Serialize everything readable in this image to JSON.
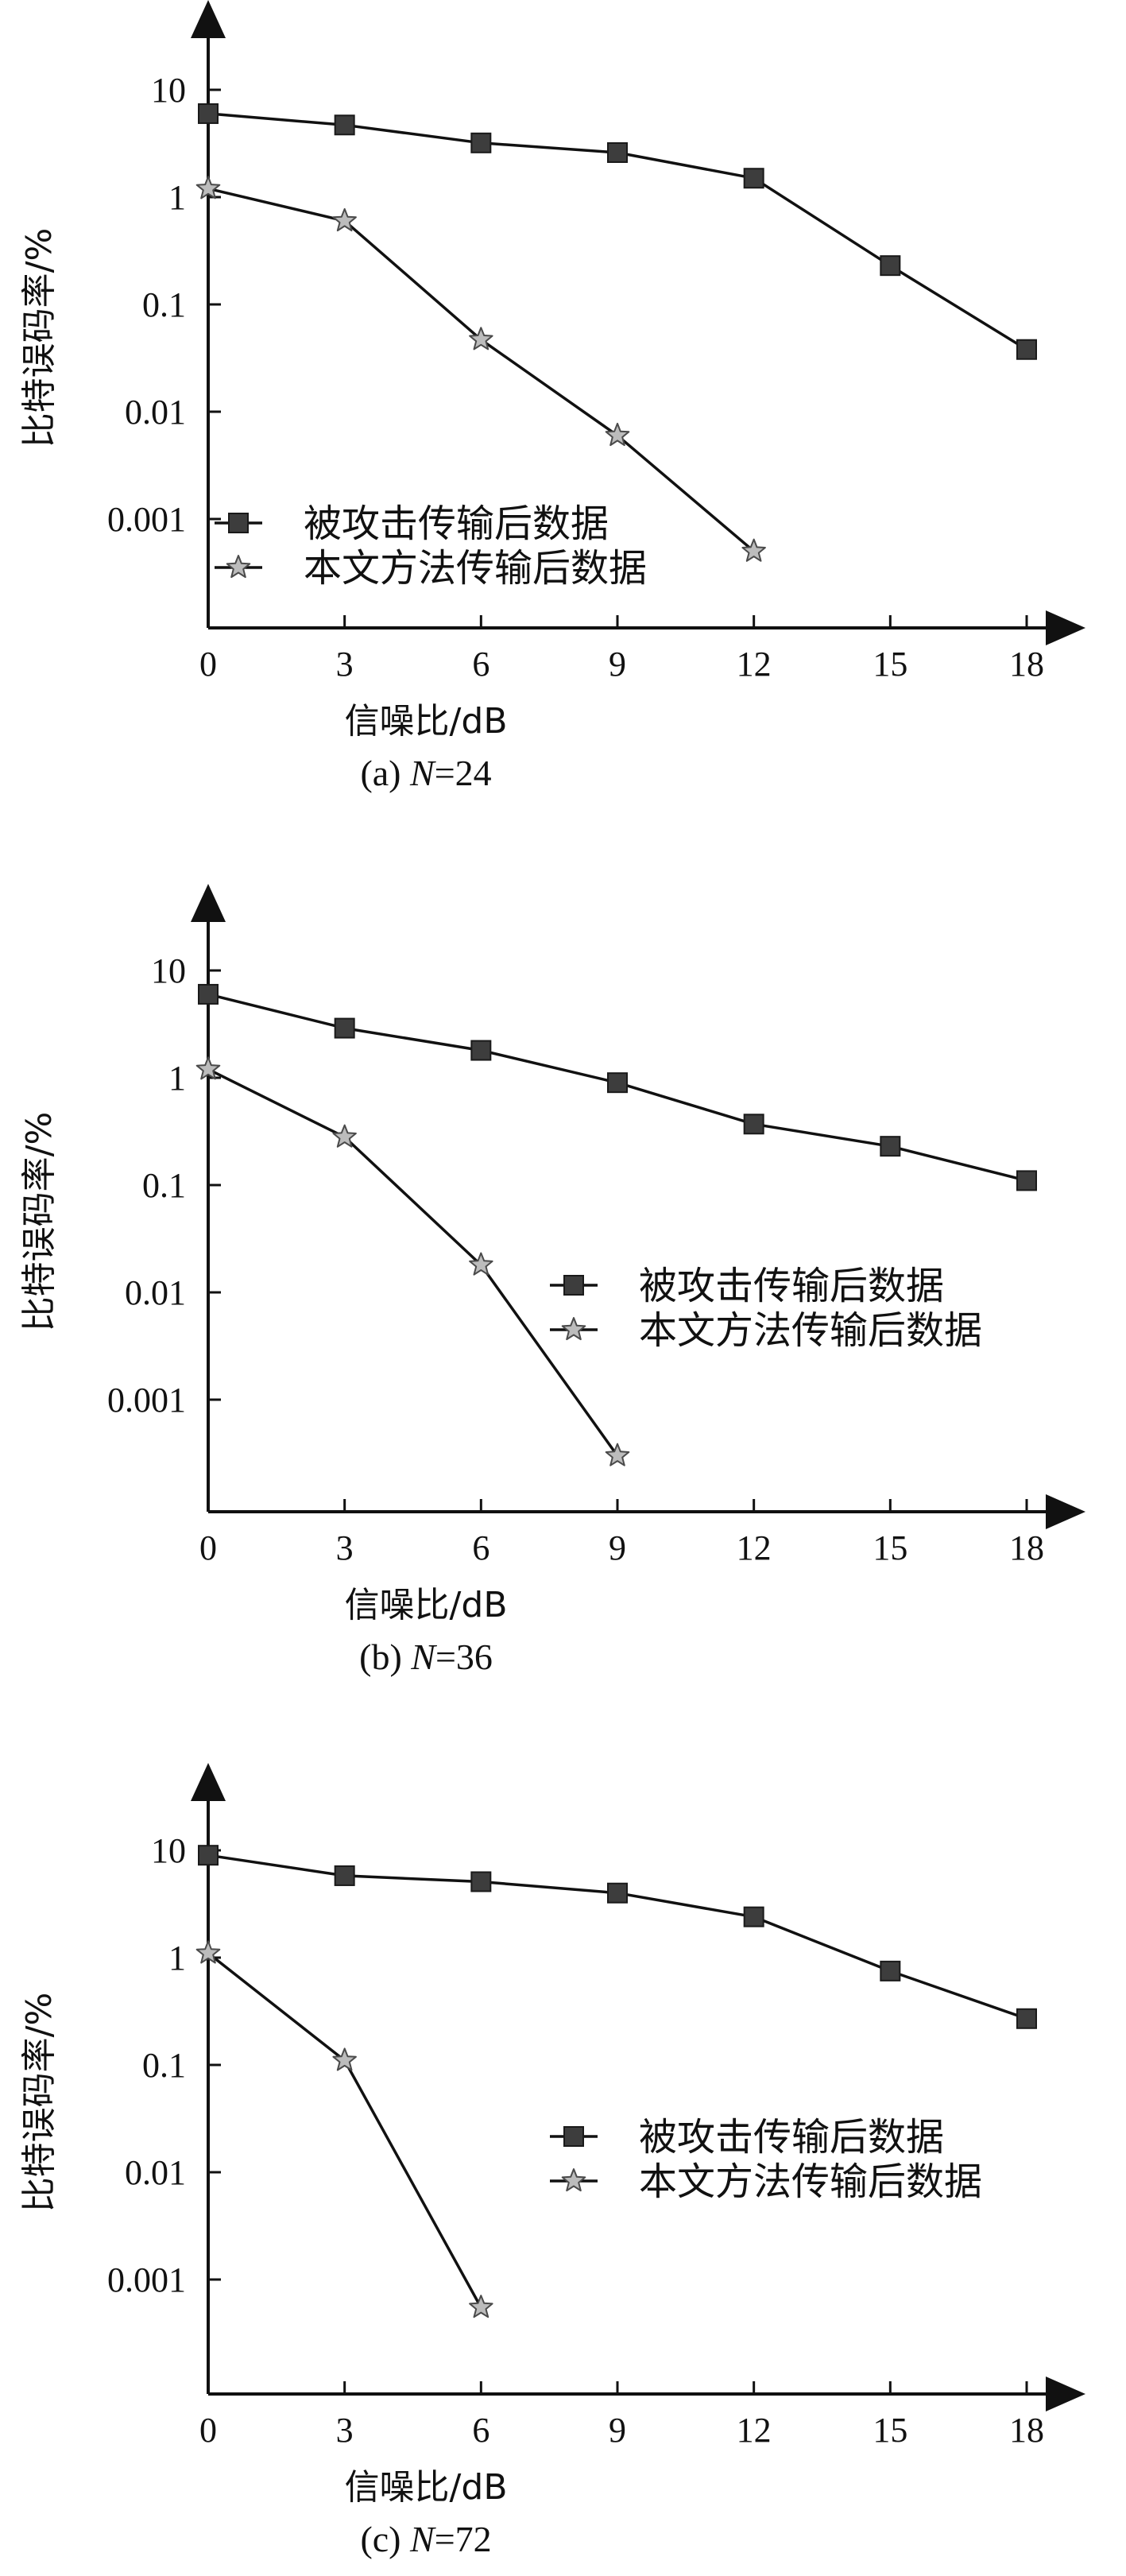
{
  "chart_data": [
    {
      "type": "line",
      "caption_prefix": "(a) ",
      "caption_var": "N",
      "caption_suffix": "=24",
      "xlabel": "信噪比/dB",
      "ylabel": "比特误码率/%",
      "y_scale": "log",
      "xlim": [
        0,
        18
      ],
      "x_ticks": [
        0,
        3,
        6,
        9,
        12,
        15,
        18
      ],
      "y_ticks": [
        0.001,
        0.01,
        0.1,
        1,
        10
      ],
      "y_tick_labels": [
        "0.001",
        "0.01",
        "0.1",
        "1",
        "10"
      ],
      "legend_position": "lower-left",
      "series": [
        {
          "name": "被攻击传输后数据",
          "marker": "square",
          "x": [
            0,
            3,
            6,
            9,
            12,
            15,
            18
          ],
          "y": [
            6,
            4.7,
            3.2,
            2.6,
            1.5,
            0.23,
            0.038
          ]
        },
        {
          "name": "本文方法传输后数据",
          "marker": "star",
          "x": [
            0,
            3,
            6,
            9,
            12
          ],
          "y": [
            1.2,
            0.6,
            0.047,
            0.006,
            0.0005
          ]
        }
      ]
    },
    {
      "type": "line",
      "caption_prefix": "(b) ",
      "caption_var": "N",
      "caption_suffix": "=36",
      "xlabel": "信噪比/dB",
      "ylabel": "比特误码率/%",
      "y_scale": "log",
      "xlim": [
        0,
        18
      ],
      "x_ticks": [
        0,
        3,
        6,
        9,
        12,
        15,
        18
      ],
      "y_ticks": [
        0.001,
        0.01,
        0.1,
        1,
        10
      ],
      "y_tick_labels": [
        "0.001",
        "0.01",
        "0.1",
        "1",
        "10"
      ],
      "legend_position": "center-right",
      "series": [
        {
          "name": "被攻击传输后数据",
          "marker": "square",
          "x": [
            0,
            3,
            6,
            9,
            12,
            15,
            18
          ],
          "y": [
            6,
            2.9,
            1.8,
            0.9,
            0.37,
            0.23,
            0.11
          ]
        },
        {
          "name": "本文方法传输后数据",
          "marker": "star",
          "x": [
            0,
            3,
            6,
            9
          ],
          "y": [
            1.2,
            0.28,
            0.018,
            0.0003
          ]
        }
      ]
    },
    {
      "type": "line",
      "caption_prefix": "(c) ",
      "caption_var": "N",
      "caption_suffix": "=72",
      "xlabel": "信噪比/dB",
      "ylabel": "比特误码率/%",
      "y_scale": "log",
      "xlim": [
        0,
        18
      ],
      "x_ticks": [
        0,
        3,
        6,
        9,
        12,
        15,
        18
      ],
      "y_ticks": [
        0.001,
        0.01,
        0.1,
        1,
        10
      ],
      "y_tick_labels": [
        "0.001",
        "0.01",
        "0.1",
        "1",
        "10"
      ],
      "legend_position": "center-right",
      "series": [
        {
          "name": "被攻击传输后数据",
          "marker": "square",
          "x": [
            0,
            3,
            6,
            9,
            12,
            15,
            18
          ],
          "y": [
            9,
            5.8,
            5.1,
            4,
            2.4,
            0.75,
            0.27
          ]
        },
        {
          "name": "本文方法传输后数据",
          "marker": "star",
          "x": [
            0,
            3,
            6
          ],
          "y": [
            1.1,
            0.11,
            0.00055
          ]
        }
      ]
    }
  ]
}
